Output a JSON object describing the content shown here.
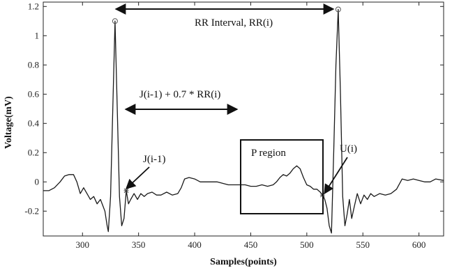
{
  "chart_data": {
    "type": "line",
    "title": "",
    "xlabel": "Samples(points)",
    "ylabel": "Voltage(mV)",
    "xlim": [
      265,
      622
    ],
    "ylim": [
      -0.37,
      1.23
    ],
    "xticks": [
      300,
      350,
      400,
      450,
      500,
      550,
      600
    ],
    "yticks": [
      -0.2,
      0,
      0.2,
      0.4,
      0.6,
      0.8,
      1,
      1.2
    ],
    "ytick_labels": [
      "-0.2",
      "0",
      "0.2",
      "0.4",
      "0.6",
      "0.8",
      "1",
      "1.2"
    ],
    "grid": false,
    "series": [
      {
        "color": "#1a1a1a",
        "x": [
          265,
          270,
          275,
          280,
          284,
          288,
          292,
          295,
          298,
          301,
          304,
          307,
          310,
          313,
          316,
          318,
          320,
          322,
          323,
          325,
          327,
          329,
          331,
          333,
          335,
          337,
          339,
          341,
          343,
          346,
          349,
          352,
          355,
          358,
          362,
          366,
          370,
          375,
          380,
          385,
          388,
          391,
          395,
          400,
          405,
          410,
          415,
          420,
          425,
          430,
          435,
          440,
          445,
          450,
          455,
          460,
          465,
          470,
          473,
          476,
          479,
          482,
          485,
          488,
          491,
          494,
          497,
          500,
          503,
          506,
          509,
          512,
          514,
          516,
          518,
          520,
          522,
          524,
          526,
          528,
          530,
          532,
          534,
          536,
          538,
          540,
          542,
          545,
          548,
          551,
          554,
          557,
          560,
          565,
          570,
          575,
          580,
          585,
          590,
          595,
          600,
          605,
          610,
          615,
          622
        ],
        "y": [
          -0.06,
          -0.06,
          -0.04,
          0.0,
          0.04,
          0.05,
          0.05,
          0.0,
          -0.08,
          -0.04,
          -0.08,
          -0.12,
          -0.1,
          -0.15,
          -0.12,
          -0.16,
          -0.2,
          -0.3,
          -0.34,
          -0.1,
          0.5,
          1.1,
          0.5,
          -0.1,
          -0.3,
          -0.25,
          -0.06,
          -0.15,
          -0.12,
          -0.08,
          -0.12,
          -0.08,
          -0.1,
          -0.08,
          -0.07,
          -0.09,
          -0.09,
          -0.07,
          -0.09,
          -0.08,
          -0.04,
          0.02,
          0.03,
          0.02,
          0.0,
          0.0,
          0.0,
          0.0,
          -0.01,
          -0.02,
          -0.02,
          -0.02,
          -0.02,
          -0.03,
          -0.03,
          -0.02,
          -0.03,
          -0.02,
          0.0,
          0.03,
          0.05,
          0.04,
          0.06,
          0.09,
          0.11,
          0.09,
          0.03,
          -0.02,
          -0.03,
          -0.05,
          -0.05,
          -0.07,
          -0.09,
          -0.12,
          -0.18,
          -0.3,
          -0.35,
          0.2,
          0.8,
          1.18,
          0.6,
          -0.1,
          -0.3,
          -0.22,
          -0.12,
          -0.25,
          -0.18,
          -0.08,
          -0.15,
          -0.09,
          -0.12,
          -0.08,
          -0.1,
          -0.08,
          -0.09,
          -0.08,
          -0.05,
          0.02,
          0.01,
          0.02,
          0.01,
          0.0,
          0.0,
          0.02,
          0.01
        ]
      }
    ],
    "markers": [
      {
        "x": 329,
        "y": 1.1,
        "shape": "circle"
      },
      {
        "x": 528,
        "y": 1.18,
        "shape": "circle"
      },
      {
        "x": 339,
        "y": -0.06,
        "shape": "star"
      },
      {
        "x": 514,
        "y": -0.09,
        "shape": "star"
      }
    ],
    "annotations": [
      {
        "text": "RR Interval, RR(i)"
      },
      {
        "text": "J(i-1) + 0.7 * RR(i)"
      },
      {
        "text": "P region"
      },
      {
        "text": "J(i-1)"
      },
      {
        "text": "U(i)"
      }
    ]
  }
}
